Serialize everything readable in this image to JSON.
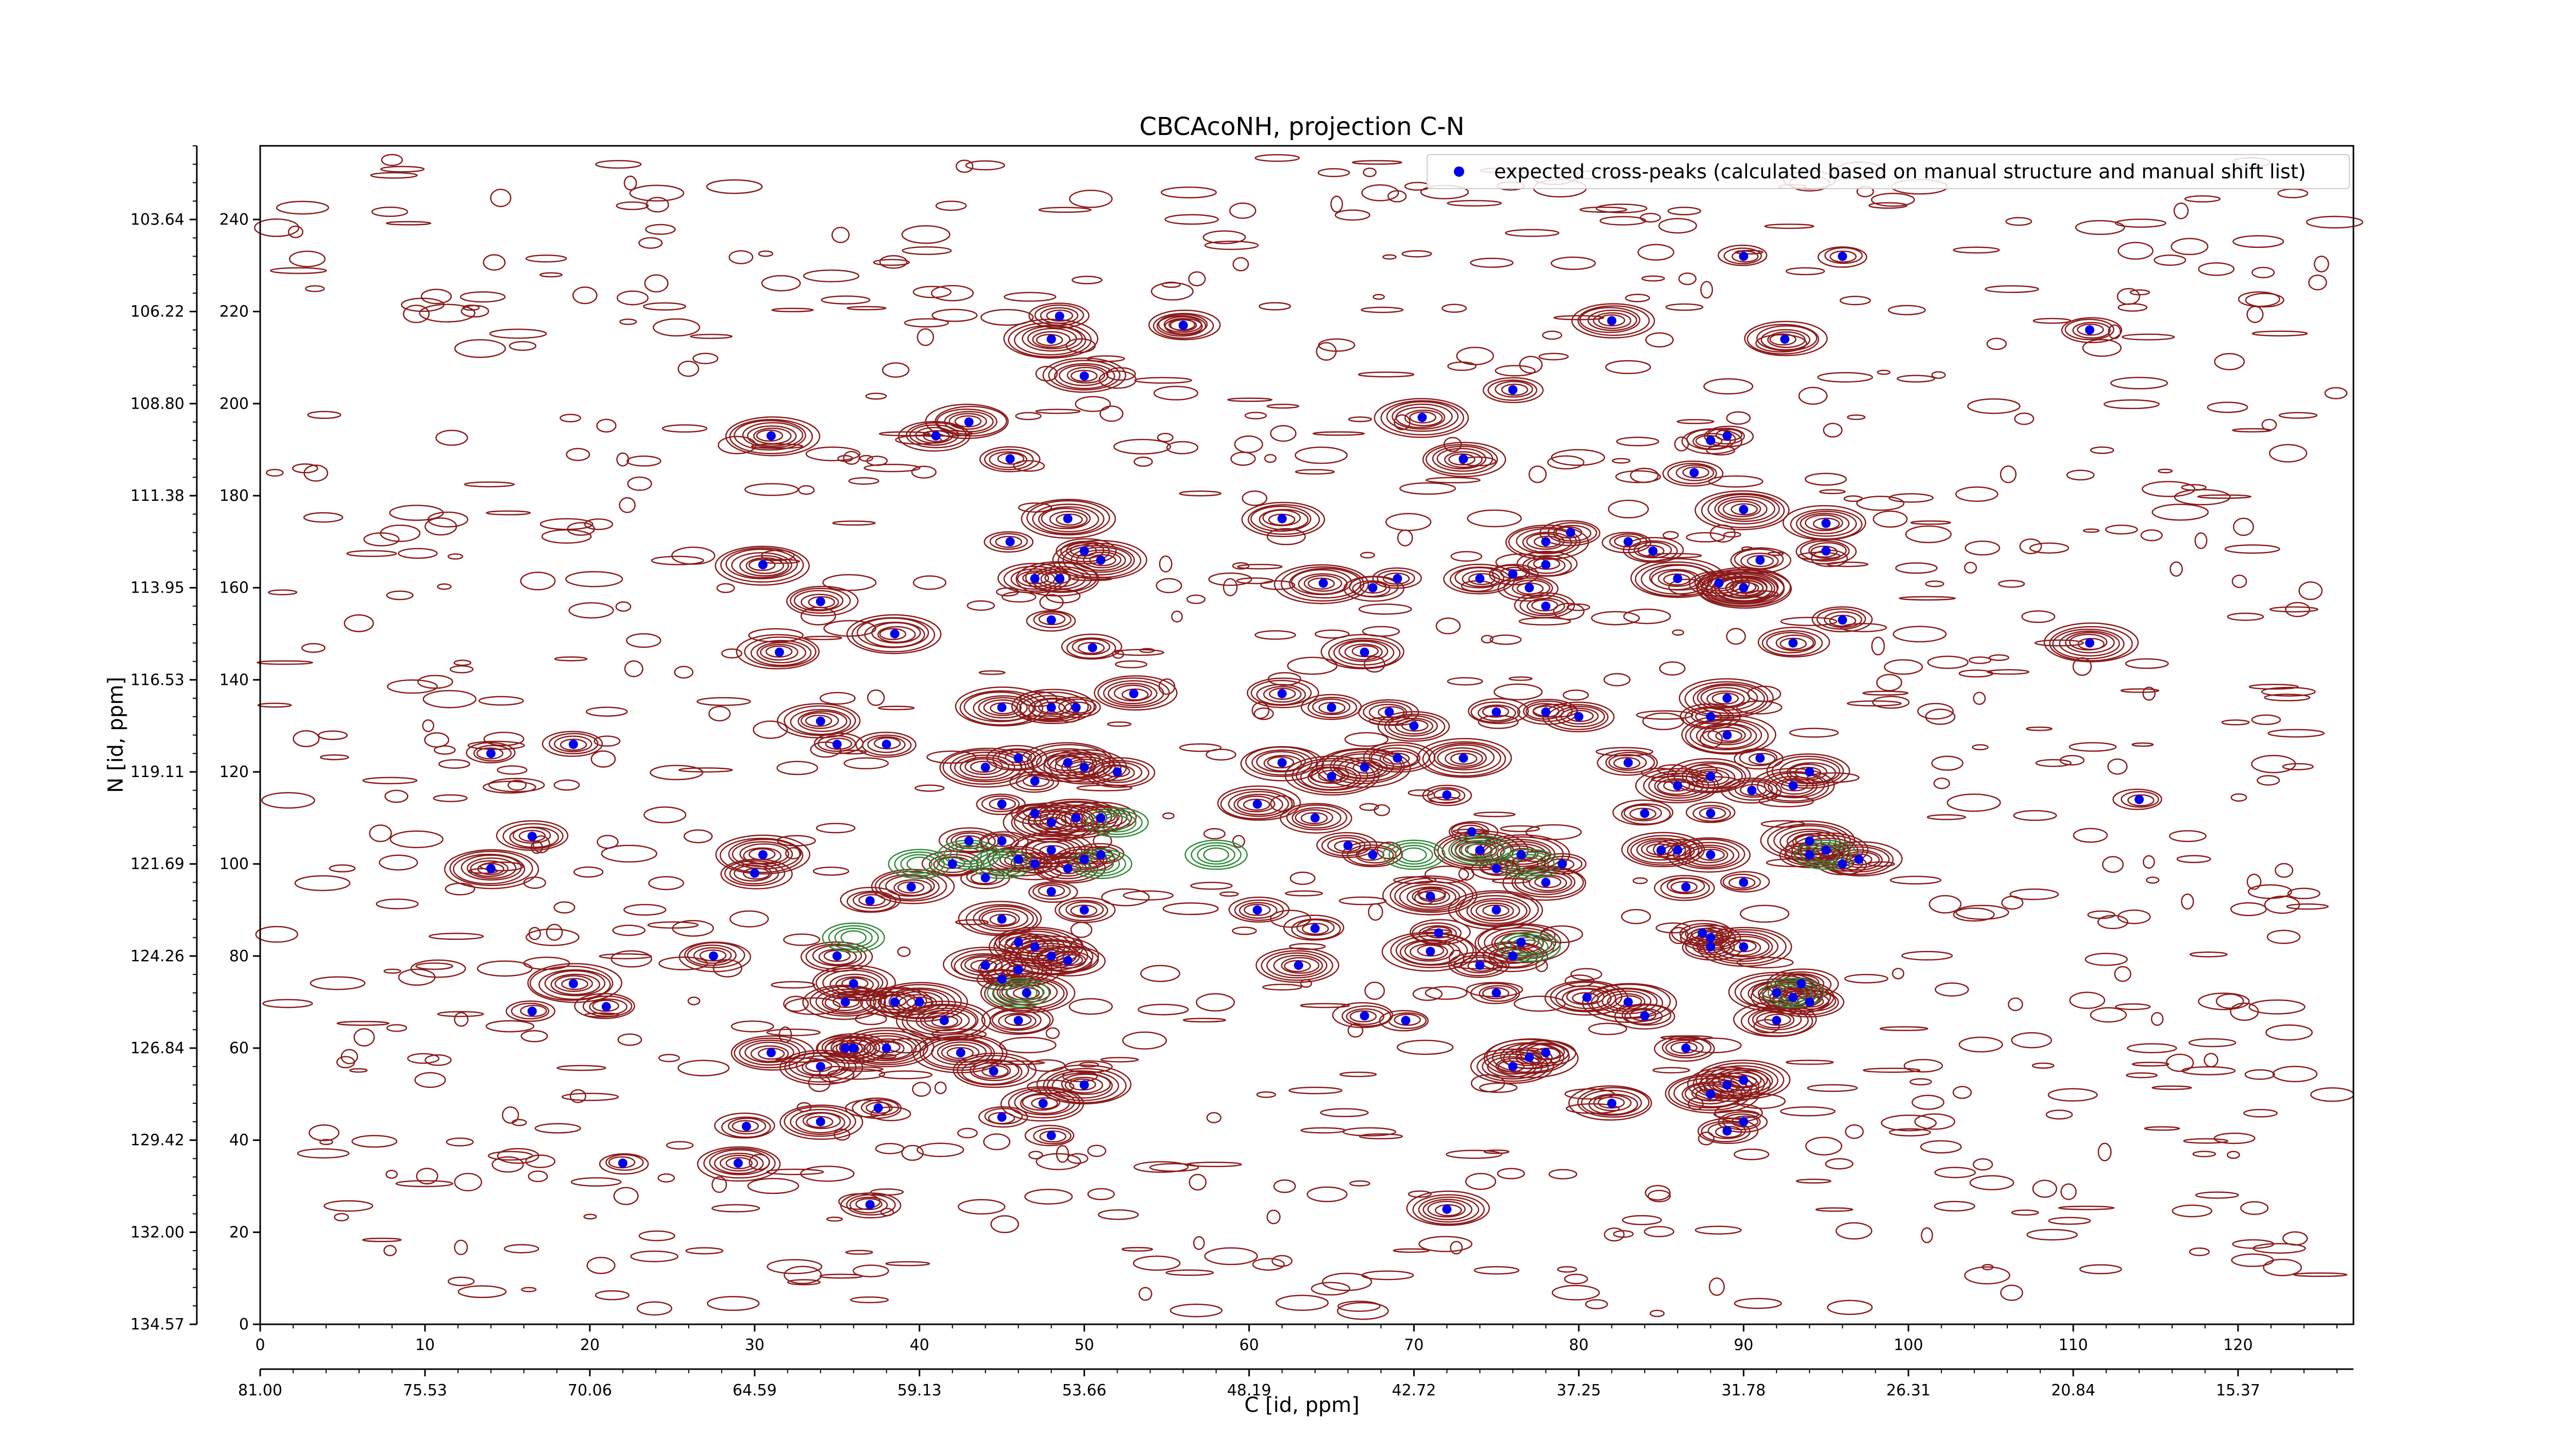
{
  "chart_data": {
    "type": "scatter",
    "title": "CBCAcoNH, projection C-N",
    "xlabel": "C [id, ppm]",
    "ylabel": "N [id, ppm]",
    "x_index_ticks": [
      "0",
      "10",
      "20",
      "30",
      "40",
      "50",
      "60",
      "70",
      "80",
      "90",
      "100",
      "110",
      "120"
    ],
    "x_ppm_ticks": [
      "81.00",
      "75.53",
      "70.06",
      "64.59",
      "59.13",
      "53.66",
      "48.19",
      "42.72",
      "37.25",
      "31.78",
      "26.31",
      "20.84",
      "15.37"
    ],
    "y_index_ticks": [
      "0",
      "20",
      "40",
      "60",
      "80",
      "100",
      "120",
      "140",
      "160",
      "180",
      "200",
      "220",
      "240"
    ],
    "y_ppm_ticks": [
      "134.57",
      "132.00",
      "129.42",
      "126.84",
      "124.26",
      "121.69",
      "119.11",
      "116.53",
      "113.95",
      "111.38",
      "108.80",
      "106.22",
      "103.64"
    ],
    "xlim": [
      0,
      127
    ],
    "ylim": [
      0,
      256
    ],
    "legend": {
      "label": "expected cross-peaks (calculated based on manual structure and manual shift list)",
      "placement": "top-right"
    },
    "colors": {
      "marker": "#0000ee",
      "contour_positive": "#8b1a1a",
      "contour_negative": "#2e8b3a"
    },
    "series": [
      {
        "name": "expected cross-peaks (calculated based on manual structure and manual shift list)",
        "points": [
          [
            48.5,
            219
          ],
          [
            48,
            214
          ],
          [
            56,
            217
          ],
          [
            50,
            206
          ],
          [
            31,
            193
          ],
          [
            41,
            193
          ],
          [
            43,
            196
          ],
          [
            45.5,
            188
          ],
          [
            30.5,
            165
          ],
          [
            34,
            157
          ],
          [
            38.5,
            150
          ],
          [
            31.5,
            146
          ],
          [
            45.5,
            170
          ],
          [
            49,
            175
          ],
          [
            47,
            162
          ],
          [
            48.5,
            162
          ],
          [
            50,
            168
          ],
          [
            51,
            166
          ],
          [
            48,
            153
          ],
          [
            50.5,
            147
          ],
          [
            53,
            137
          ],
          [
            45,
            134
          ],
          [
            48,
            134
          ],
          [
            49.5,
            134
          ],
          [
            34,
            131
          ],
          [
            35,
            126
          ],
          [
            38,
            126
          ],
          [
            44,
            121
          ],
          [
            46,
            123
          ],
          [
            47,
            118
          ],
          [
            49,
            122
          ],
          [
            50,
            121
          ],
          [
            52,
            120
          ],
          [
            45,
            113
          ],
          [
            47,
            111
          ],
          [
            48,
            109
          ],
          [
            49.5,
            110
          ],
          [
            51,
            110
          ],
          [
            43,
            105
          ],
          [
            45,
            105
          ],
          [
            46,
            101
          ],
          [
            47,
            100
          ],
          [
            48,
            103
          ],
          [
            49,
            99
          ],
          [
            50,
            101
          ],
          [
            51,
            102
          ],
          [
            42,
            100
          ],
          [
            44,
            97
          ],
          [
            48,
            94
          ],
          [
            50,
            90
          ],
          [
            39.5,
            95
          ],
          [
            37,
            92
          ],
          [
            45,
            88
          ],
          [
            46,
            83
          ],
          [
            47,
            82
          ],
          [
            48,
            80
          ],
          [
            49,
            79
          ],
          [
            44,
            78
          ],
          [
            46,
            77
          ],
          [
            46.5,
            72
          ],
          [
            45,
            75
          ],
          [
            46,
            66
          ],
          [
            40,
            70
          ],
          [
            41.5,
            66
          ],
          [
            36,
            74
          ],
          [
            35,
            80
          ],
          [
            35.5,
            70
          ],
          [
            38.5,
            70
          ],
          [
            36,
            60
          ],
          [
            38,
            60
          ],
          [
            34,
            56
          ],
          [
            35.5,
            60
          ],
          [
            42.5,
            59
          ],
          [
            44.5,
            55
          ],
          [
            50,
            52
          ],
          [
            47.5,
            48
          ],
          [
            45,
            45
          ],
          [
            48,
            41
          ],
          [
            27.5,
            80
          ],
          [
            29.5,
            43
          ],
          [
            29,
            35
          ],
          [
            34,
            44
          ],
          [
            37.5,
            47
          ],
          [
            31,
            59
          ],
          [
            22,
            35
          ],
          [
            37,
            26
          ],
          [
            16.5,
            68
          ],
          [
            19,
            74
          ],
          [
            21,
            69
          ],
          [
            16.5,
            106
          ],
          [
            19,
            126
          ],
          [
            14,
            124
          ],
          [
            14,
            99
          ],
          [
            30.5,
            102
          ],
          [
            30,
            98
          ],
          [
            56,
            217
          ],
          [
            62,
            175
          ],
          [
            64.5,
            161
          ],
          [
            67.5,
            160
          ],
          [
            70.5,
            197
          ],
          [
            69,
            162
          ],
          [
            74,
            162
          ],
          [
            73,
            188
          ],
          [
            67,
            146
          ],
          [
            62,
            137
          ],
          [
            65,
            134
          ],
          [
            68.5,
            133
          ],
          [
            69,
            123
          ],
          [
            70,
            130
          ],
          [
            62,
            122
          ],
          [
            65,
            119
          ],
          [
            67,
            121
          ],
          [
            60.5,
            113
          ],
          [
            64,
            110
          ],
          [
            66,
            104
          ],
          [
            67.5,
            102
          ],
          [
            72,
            115
          ],
          [
            73,
            123
          ],
          [
            73.5,
            107
          ],
          [
            74,
            103
          ],
          [
            75,
            99
          ],
          [
            71,
            93
          ],
          [
            71.5,
            85
          ],
          [
            71,
            81
          ],
          [
            60.5,
            90
          ],
          [
            64,
            86
          ],
          [
            63,
            78
          ],
          [
            67,
            67
          ],
          [
            69.5,
            66
          ],
          [
            76,
            203
          ],
          [
            79.5,
            172
          ],
          [
            78,
            170
          ],
          [
            78,
            165
          ],
          [
            77,
            160
          ],
          [
            76,
            163
          ],
          [
            78,
            156
          ],
          [
            75,
            133
          ],
          [
            78,
            133
          ],
          [
            80,
            132
          ],
          [
            76.5,
            102
          ],
          [
            78,
            96
          ],
          [
            79,
            100
          ],
          [
            75,
            90
          ],
          [
            76,
            80
          ],
          [
            76.5,
            83
          ],
          [
            74,
            78
          ],
          [
            75,
            72
          ],
          [
            76,
            56
          ],
          [
            77,
            58
          ],
          [
            78,
            59
          ],
          [
            82,
            218
          ],
          [
            83,
            170
          ],
          [
            84.5,
            168
          ],
          [
            86,
            162
          ],
          [
            83,
            122
          ],
          [
            84,
            111
          ],
          [
            85,
            103
          ],
          [
            86,
            103
          ],
          [
            86.5,
            95
          ],
          [
            88,
            102
          ],
          [
            90,
            96
          ],
          [
            88,
            111
          ],
          [
            90.5,
            116
          ],
          [
            88,
            119
          ],
          [
            90,
            160
          ],
          [
            88.5,
            161
          ],
          [
            91,
            166
          ],
          [
            95,
            174
          ],
          [
            95,
            168
          ],
          [
            93,
            148
          ],
          [
            96,
            153
          ],
          [
            88,
            132
          ],
          [
            89,
            136
          ],
          [
            86,
            117
          ],
          [
            91,
            123
          ],
          [
            89,
            128
          ],
          [
            93,
            117
          ],
          [
            94,
            120
          ],
          [
            94,
            105
          ],
          [
            95,
            103
          ],
          [
            96,
            100
          ],
          [
            97,
            101
          ],
          [
            94,
            102
          ],
          [
            88,
            82
          ],
          [
            88,
            84
          ],
          [
            87.5,
            85
          ],
          [
            90,
            82
          ],
          [
            90,
            177
          ],
          [
            90,
            160
          ],
          [
            92.5,
            214
          ],
          [
            92,
            72
          ],
          [
            93.5,
            74
          ],
          [
            90,
            232
          ],
          [
            96,
            232
          ],
          [
            87,
            185
          ],
          [
            88,
            192
          ],
          [
            89,
            193
          ],
          [
            83,
            70
          ],
          [
            84,
            67
          ],
          [
            86.5,
            60
          ],
          [
            88,
            50
          ],
          [
            89,
            52
          ],
          [
            90,
            53
          ],
          [
            89,
            42
          ],
          [
            90,
            44
          ],
          [
            92,
            66
          ],
          [
            93,
            71
          ],
          [
            94,
            70
          ],
          [
            82,
            48
          ],
          [
            80.5,
            71
          ],
          [
            111,
            216
          ],
          [
            111,
            148
          ],
          [
            114,
            114
          ],
          [
            72,
            25
          ]
        ]
      }
    ]
  }
}
